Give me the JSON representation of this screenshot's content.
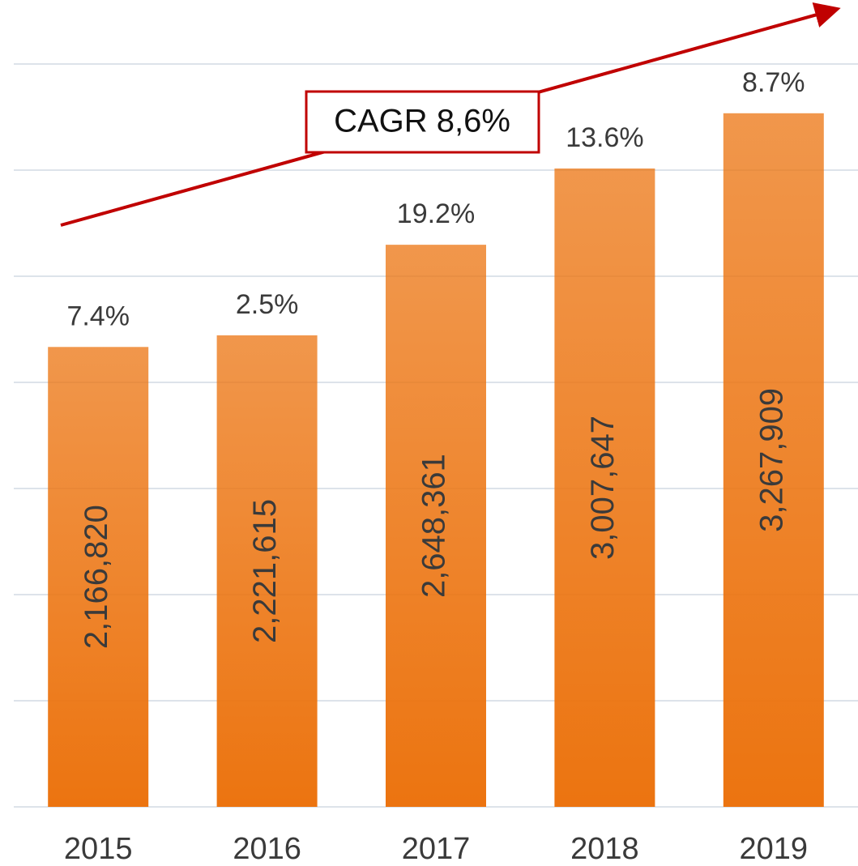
{
  "chart_data": {
    "type": "bar",
    "categories": [
      "2015",
      "2016",
      "2017",
      "2018",
      "2019"
    ],
    "values": [
      2166820,
      2221615,
      2648361,
      3007647,
      3267909
    ],
    "value_labels": [
      "2,166,820",
      "2,221,615",
      "2,648,361",
      "3,007,647",
      "3,267,909"
    ],
    "growth_labels": [
      "7.4%",
      "2.5%",
      "19.2%",
      "13.6%",
      "8.7%"
    ],
    "annotation": "CAGR 8,6%",
    "color": "#ec7410",
    "ylim": [
      0,
      3500000
    ],
    "yticks": [
      0,
      500000,
      1000000,
      1500000,
      2000000,
      2500000,
      3000000,
      3500000
    ],
    "grid": true
  }
}
